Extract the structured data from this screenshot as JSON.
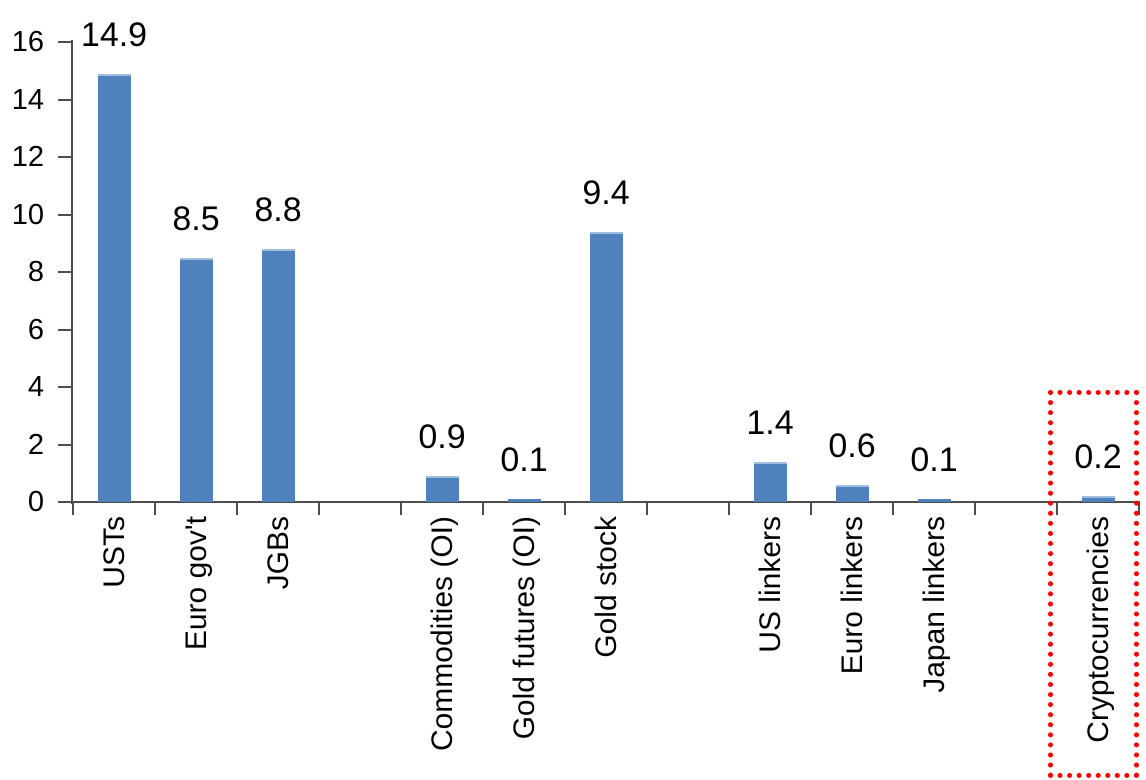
{
  "chart_data": {
    "type": "bar",
    "title": "",
    "xlabel": "",
    "ylabel": "",
    "categories": [
      "USTs",
      "Euro gov't",
      "JGBs",
      "Commodities (OI)",
      "Gold futures (OI)",
      "Gold stock",
      "US linkers",
      "Euro linkers",
      "Japan linkers",
      "Cryptocurrencies"
    ],
    "values": [
      14.9,
      8.5,
      8.8,
      0.9,
      0.1,
      9.4,
      1.4,
      0.6,
      0.1,
      0.2
    ],
    "data_labels": [
      "14.9",
      "8.5",
      "8.8",
      "0.9",
      "0.1",
      "9.4",
      "1.4",
      "0.6",
      "0.1",
      "0.2"
    ],
    "slot_index": [
      0,
      1,
      2,
      4,
      5,
      6,
      8,
      9,
      10,
      12
    ],
    "total_slots": 13,
    "yticks": [
      "0",
      "2",
      "4",
      "6",
      "8",
      "10",
      "12",
      "14",
      "16"
    ],
    "ytick_values": [
      0,
      2,
      4,
      6,
      8,
      10,
      12,
      14,
      16
    ],
    "ylim": [
      0,
      16
    ],
    "grid": false,
    "legend": false,
    "bar_color": "#4F81BD",
    "bar_top_edge_color": "#9FBFDF",
    "axis_color": "#4d4d4d",
    "label_color": "#000000",
    "highlight": {
      "category": "Cryptocurrencies",
      "shape": "dotted-rectangle",
      "color": "#FF0000"
    }
  }
}
